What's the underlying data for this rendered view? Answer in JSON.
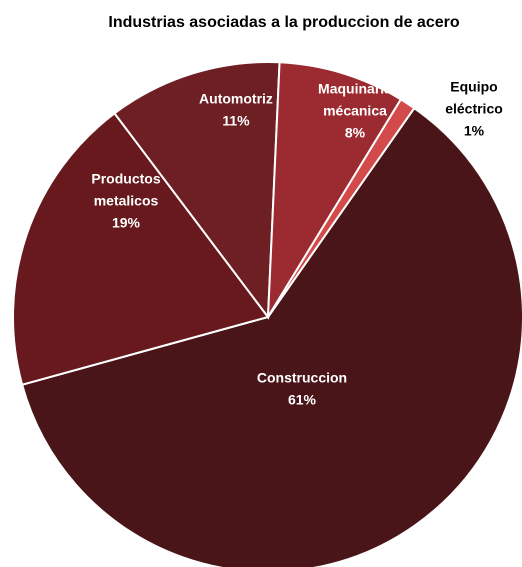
{
  "chart_data": {
    "type": "pie",
    "title": "Industrias asociadas a la produccion de acero",
    "slices": [
      {
        "label": [
          "Construccion"
        ],
        "percent_label": "61%",
        "value": 61,
        "color": "#4a1518"
      },
      {
        "label": [
          "Productos",
          "metalicos"
        ],
        "percent_label": "19%",
        "value": 19,
        "color": "#67191d"
      },
      {
        "label": [
          "Automotriz"
        ],
        "percent_label": "11%",
        "value": 11,
        "color": "#6e1f23"
      },
      {
        "label": [
          "Maquinaria",
          "mécanica"
        ],
        "percent_label": "8%",
        "value": 8,
        "color": "#9c2b31"
      },
      {
        "label": [
          "Equipo",
          "eléctrico"
        ],
        "percent_label": "1%",
        "value": 1,
        "color": "#d24a4a"
      }
    ]
  }
}
